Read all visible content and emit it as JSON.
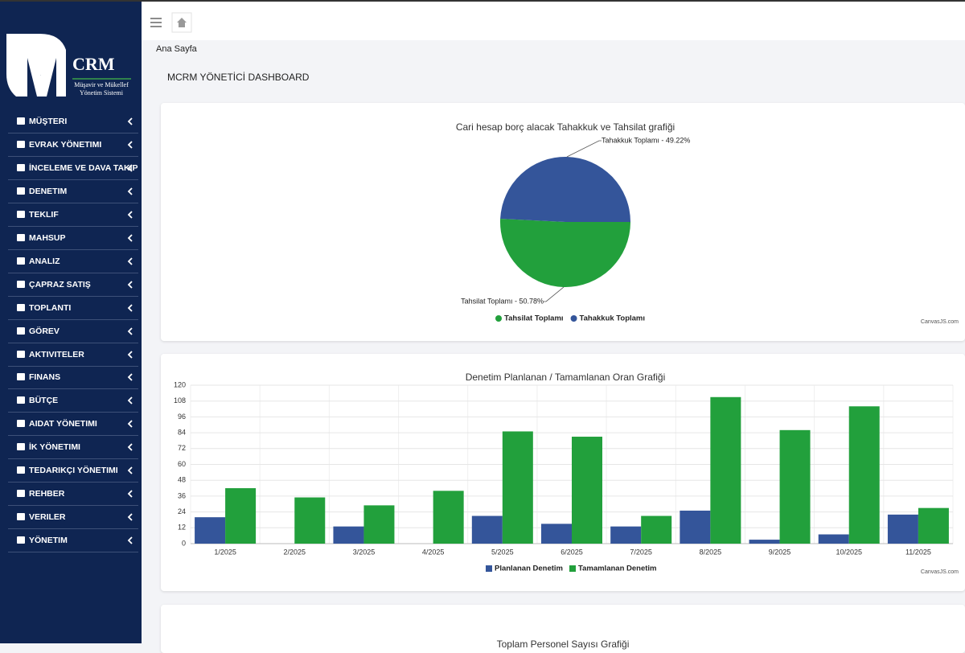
{
  "logo": {
    "mark": "M",
    "name": "CRM",
    "subtitle": [
      "Müşavir ve Mükellef",
      "Yönetim Sistemi"
    ]
  },
  "sidebar": {
    "menu": [
      "MÜŞTERI",
      "EVRAK YÖNETIMI",
      "İNCELEME VE DAVA TAKIP",
      "DENETIM",
      "TEKLIF",
      "MAHSUP",
      "ANALIZ",
      "ÇAPRAZ SATIŞ",
      "TOPLANTI",
      "GÖREV",
      "AKTIVITELER",
      "FINANS",
      "BÜTÇE",
      "AIDAT YÖNETIMI",
      "İK YÖNETIMI",
      "TEDARIKÇI YÖNETIMI",
      "REHBER",
      "VERILER",
      "YÖNETIM"
    ]
  },
  "breadcrumb": "Ana Sayfa",
  "page_title": "MCRM YÖNETİCİ DASHBOARD",
  "third_card_title": "Toplam Personel Sayısı Grafiği",
  "chart_data": [
    {
      "type": "pie",
      "title": "Cari hesap borç alacak Tahakkuk ve Tahsilat grafiği",
      "categories": [
        "Tahsilat Toplamı",
        "Tahakkuk Toplamı"
      ],
      "values": [
        50.78,
        49.22
      ],
      "value_labels": [
        "Tahsilat Toplamı - 50.78%",
        "Tahakkuk Toplamı - 49.22%"
      ],
      "colors": [
        "#22a03c",
        "#34559a"
      ],
      "legend": "bottom",
      "credit": "CanvasJS.com"
    },
    {
      "type": "bar",
      "title": "Denetim Planlanan / Tamamlanan Oran Grafiği",
      "categories": [
        "1/2025",
        "2/2025",
        "3/2025",
        "4/2025",
        "5/2025",
        "6/2025",
        "7/2025",
        "8/2025",
        "9/2025",
        "10/2025",
        "11/2025"
      ],
      "series": [
        {
          "name": "Planlanan Denetim",
          "color": "#34559a",
          "values": [
            20,
            0,
            13,
            0,
            21,
            15,
            13,
            25,
            3,
            7,
            22
          ]
        },
        {
          "name": "Tamamlanan Denetim",
          "color": "#22a03c",
          "values": [
            42,
            35,
            29,
            40,
            85,
            81,
            21,
            111,
            86,
            104,
            27
          ]
        }
      ],
      "ylim": [
        0,
        120
      ],
      "yticks": [
        0,
        12,
        24,
        36,
        48,
        60,
        72,
        84,
        96,
        108,
        120
      ],
      "grid": true,
      "legend": "bottom",
      "credit": "CanvasJS.com"
    }
  ]
}
